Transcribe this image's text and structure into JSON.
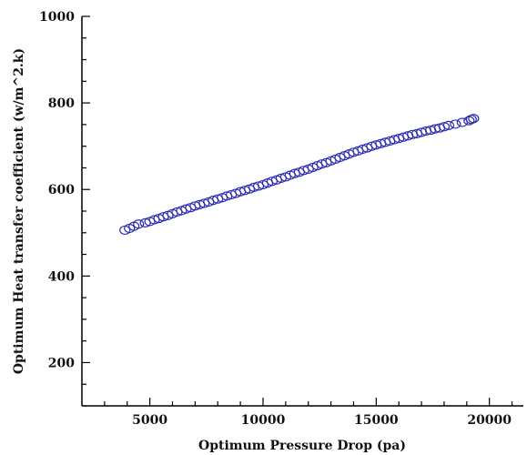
{
  "chart_data": {
    "type": "scatter",
    "title": "",
    "xlabel": "Optimum Pressure Drop (pa)",
    "ylabel": "Optimum Heat transfer coefficient (w/m^2.k)",
    "xlim": [
      2000,
      21500
    ],
    "ylim": [
      100,
      1000
    ],
    "x_ticks": [
      5000,
      10000,
      15000,
      20000
    ],
    "y_ticks": [
      200,
      400,
      600,
      800,
      1000
    ],
    "x_ticks_minor": [
      3000,
      4000,
      6000,
      7000,
      8000,
      9000,
      11000,
      12000,
      13000,
      14000,
      16000,
      17000,
      18000,
      19000,
      21000
    ],
    "y_ticks_minor": [
      100,
      150,
      250,
      300,
      350,
      450,
      500,
      550,
      650,
      700,
      750,
      850,
      900,
      950
    ],
    "grid": false,
    "marker_color": "#2b2bb0",
    "series": [
      {
        "x": [
          3900,
          4100,
          4300,
          4500,
          4800,
          5000,
          5200,
          5400,
          5600,
          5800,
          6000,
          6200,
          6400,
          6600,
          6800,
          7000,
          7200,
          7400,
          7600,
          7800,
          8000,
          8200,
          8400,
          8600,
          8800,
          9000,
          9200,
          9400,
          9600,
          9800,
          10000,
          10200,
          10400,
          10600,
          10800,
          11000,
          11200,
          11400,
          11600,
          11800,
          12000,
          12200,
          12400,
          12600,
          12800,
          13000,
          13200,
          13400,
          13600,
          13800,
          14000,
          14200,
          14400,
          14600,
          14800,
          15000,
          15200,
          15400,
          15600,
          15800,
          16000,
          16200,
          16400,
          16600,
          16800,
          17000,
          17200,
          17400,
          17600,
          17800,
          18000,
          18200,
          18500,
          18800,
          19100,
          19200,
          19300
        ],
        "y": [
          506,
          510,
          515,
          520,
          523,
          526,
          530,
          533,
          537,
          540,
          544,
          548,
          551,
          555,
          558,
          562,
          565,
          568,
          571,
          575,
          578,
          581,
          585,
          588,
          591,
          595,
          598,
          601,
          605,
          608,
          611,
          615,
          619,
          622,
          626,
          629,
          633,
          637,
          640,
          644,
          647,
          651,
          655,
          659,
          662,
          666,
          670,
          674,
          678,
          682,
          686,
          689,
          693,
          696,
          700,
          703,
          706,
          709,
          712,
          715,
          718,
          721,
          724,
          727,
          729,
          732,
          735,
          737,
          740,
          742,
          745,
          748,
          751,
          755,
          759,
          762,
          764
        ]
      }
    ]
  }
}
